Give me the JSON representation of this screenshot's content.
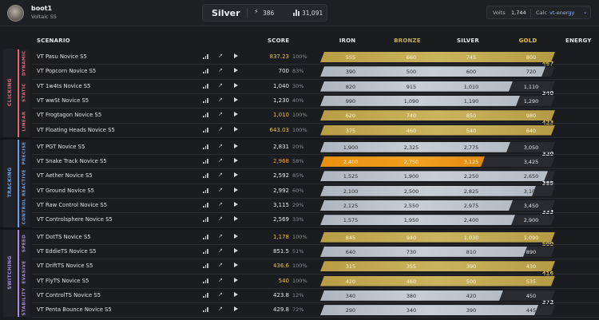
{
  "header": {
    "username": "boot1",
    "subtitle": "Voltaic S5",
    "rank": "Silver",
    "stat_energy": "386",
    "stat_score": "31,091",
    "volts_label": "Volts",
    "volts_value": "1,744",
    "calc_label": "Calc",
    "calc_value": "vt-energy"
  },
  "columns": {
    "scenario": "SCENARIO",
    "score": "SCORE",
    "iron": "IRON",
    "bronze": "BRONZE",
    "silver": "SILVER",
    "gold": "GOLD",
    "energy": "ENERGY"
  },
  "colors": {
    "gold": "#c6ad56",
    "silver": "#bcc3cc",
    "orange": "#e08a10",
    "clicking": "#e06a7c",
    "tracking": "#6aa0e6",
    "switching": "#a88ae0",
    "energy_gold": "#e2c34f"
  },
  "sections": [
    {
      "label": "CLICKING"
    },
    {
      "label": "TRACKING"
    },
    {
      "label": "SWITCHING"
    }
  ],
  "groups": [
    {
      "label": "DYNAMIC",
      "energy": "467"
    },
    {
      "label": "STATIC",
      "energy": "340"
    },
    {
      "label": "LINEAR",
      "energy": "423"
    },
    {
      "label": "PRECISE",
      "energy": "320"
    },
    {
      "label": "REACTIVE",
      "energy": "385"
    },
    {
      "label": "CONTROL",
      "energy": "333"
    },
    {
      "label": "SPEED",
      "energy": "500"
    },
    {
      "label": "EVASIVE",
      "energy": "416"
    },
    {
      "label": "STABILITY",
      "energy": "372"
    }
  ],
  "rows": [
    {
      "name": "VT Pasu Novice S5",
      "score": "837.23",
      "pct": "100%",
      "t": [
        "555",
        "660",
        "745",
        "800"
      ],
      "fill": 1.0,
      "color": "gold"
    },
    {
      "name": "VT Popcorn Novice S5",
      "score": "700",
      "pct": "83%",
      "t": [
        "390",
        "500",
        "600",
        "720"
      ],
      "fill": 0.96,
      "color": "silver"
    },
    {
      "name": "VT 1w4ts Novice S5",
      "score": "1,040",
      "pct": "30%",
      "t": [
        "820",
        "915",
        "1,010",
        "1,110"
      ],
      "fill": 0.82,
      "color": "silver"
    },
    {
      "name": "VT wwSt Novice S5",
      "score": "1,230",
      "pct": "40%",
      "t": [
        "990",
        "1,090",
        "1,190",
        "1,290"
      ],
      "fill": 0.85,
      "color": "silver"
    },
    {
      "name": "VT Frogtagon Novice S5",
      "score": "1,010",
      "pct": "100%",
      "t": [
        "620",
        "740",
        "850",
        "980"
      ],
      "fill": 1.0,
      "color": "gold"
    },
    {
      "name": "VT Floating Heads Novice S5",
      "score": "643.03",
      "pct": "100%",
      "t": [
        "375",
        "460",
        "540",
        "640"
      ],
      "fill": 1.0,
      "color": "gold"
    },
    {
      "name": "VT PGT Novice S5",
      "score": "2,831",
      "pct": "20%",
      "t": [
        "1,900",
        "2,325",
        "2,775",
        "3,050"
      ],
      "fill": 0.81,
      "color": "silver"
    },
    {
      "name": "VT Snake Track Novice S5",
      "score": "2,968",
      "pct": "58%",
      "t": [
        "2,400",
        "2,750",
        "3,125",
        "3,425"
      ],
      "fill": 0.7,
      "color": "orange"
    },
    {
      "name": "VT Aether Novice S5",
      "score": "2,592",
      "pct": "85%",
      "t": [
        "1,525",
        "1,900",
        "2,250",
        "2,650"
      ],
      "fill": 0.97,
      "color": "silver"
    },
    {
      "name": "VT Ground Novice S5",
      "score": "2,992",
      "pct": "60%",
      "t": [
        "2,100",
        "2,500",
        "2,825",
        "3,100"
      ],
      "fill": 0.92,
      "color": "silver"
    },
    {
      "name": "VT Raw Control Novice S5",
      "score": "3,115",
      "pct": "29%",
      "t": [
        "2,125",
        "2,550",
        "2,975",
        "3,450"
      ],
      "fill": 0.82,
      "color": "silver"
    },
    {
      "name": "VT Controlsphere Novice S5",
      "score": "2,569",
      "pct": "33%",
      "t": [
        "1,575",
        "1,950",
        "2,400",
        "2,900"
      ],
      "fill": 0.83,
      "color": "silver"
    },
    {
      "name": "VT DotTS Novice S5",
      "score": "1,178",
      "pct": "100%",
      "t": [
        "845",
        "940",
        "1,030",
        "1,090"
      ],
      "fill": 1.0,
      "color": "gold"
    },
    {
      "name": "VT EddieTS Novice S5",
      "score": "851.5",
      "pct": "51%",
      "t": [
        "640",
        "730",
        "810",
        "890"
      ],
      "fill": 0.88,
      "color": "silver"
    },
    {
      "name": "VT DriftTS Novice S5",
      "score": "436.6",
      "pct": "100%",
      "t": [
        "315",
        "355",
        "390",
        "430"
      ],
      "fill": 1.0,
      "color": "gold"
    },
    {
      "name": "VT FlyTS Novice S5",
      "score": "540",
      "pct": "100%",
      "t": [
        "420",
        "460",
        "500",
        "535"
      ],
      "fill": 1.0,
      "color": "gold"
    },
    {
      "name": "VT ControlTS Novice S5",
      "score": "423.8",
      "pct": "12%",
      "t": [
        "340",
        "380",
        "420",
        "450"
      ],
      "fill": 0.78,
      "color": "silver"
    },
    {
      "name": "VT Penta Bounce Novice S5",
      "score": "429.8",
      "pct": "72%",
      "t": [
        "290",
        "340",
        "390",
        "445"
      ],
      "fill": 0.93,
      "color": "silver"
    }
  ]
}
